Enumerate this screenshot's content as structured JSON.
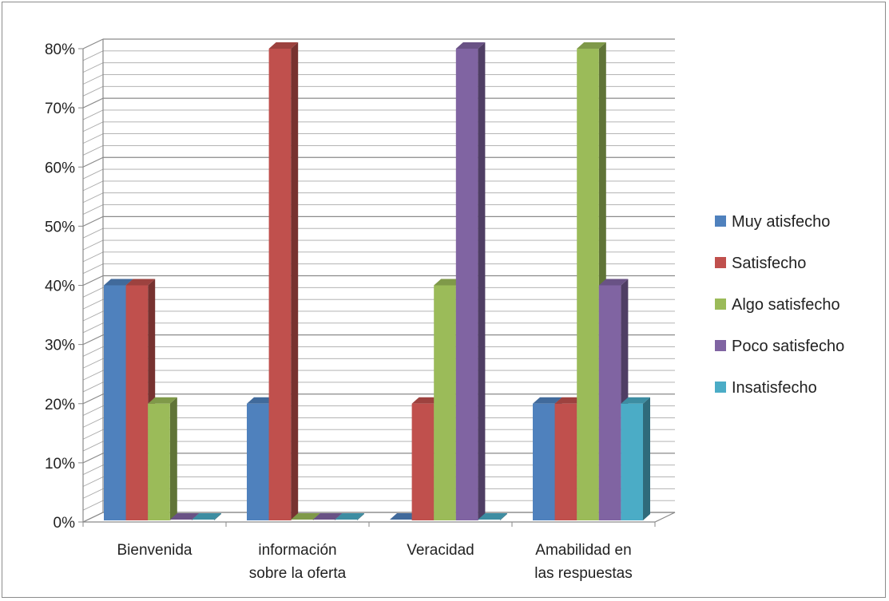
{
  "chart_data": {
    "type": "bar",
    "style": "3d-clustered-column",
    "categories": [
      [
        "Bienvenida"
      ],
      [
        "información",
        "sobre la oferta"
      ],
      [
        "Veracidad"
      ],
      [
        "Amabilidad en",
        "las respuestas"
      ]
    ],
    "series": [
      {
        "name": "Muy atisfecho",
        "color": "#4F81BD",
        "values": [
          40,
          20,
          0,
          20
        ]
      },
      {
        "name": "Satisfecho",
        "color": "#C0504D",
        "values": [
          40,
          80,
          20,
          20
        ]
      },
      {
        "name": "Algo satisfecho",
        "color": "#9BBB59",
        "values": [
          20,
          0,
          40,
          80
        ]
      },
      {
        "name": "Poco satisfecho",
        "color": "#8064A2",
        "values": [
          0,
          0,
          80,
          40
        ]
      },
      {
        "name": "Insatisfecho",
        "color": "#4BACC6",
        "values": [
          0,
          0,
          0,
          20
        ]
      }
    ],
    "ylim": [
      0,
      80
    ],
    "yticks": [
      0,
      10,
      20,
      30,
      40,
      50,
      60,
      70,
      80
    ],
    "ytick_format": "%",
    "grid": true,
    "legend": "right"
  }
}
